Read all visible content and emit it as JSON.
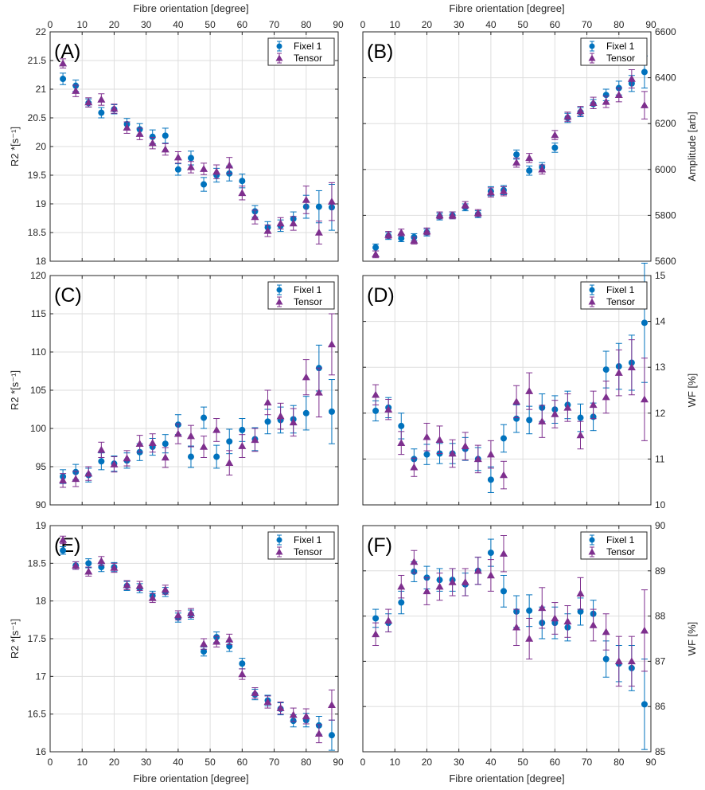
{
  "figure": {
    "top_xlabel": "Fibre orientation [degree]",
    "bottom_xlabel": "Fibre orientation [degree]"
  },
  "colors": {
    "fixel": "#0072bd",
    "tensor": "#7e2f8e",
    "grid": "#dedede",
    "axis": "#262626"
  },
  "chart_data": [
    {
      "id": "A",
      "type": "scatter",
      "panel_label": "(A)",
      "ylabel": "R2 *[s⁻¹]",
      "ylabel_side": "left",
      "xlim": [
        0,
        90
      ],
      "ylim": [
        18,
        22
      ],
      "xticks": [
        "0",
        "10",
        "20",
        "30",
        "40",
        "50",
        "60",
        "70",
        "80",
        "90"
      ],
      "yticks": [
        "18",
        "18.5",
        "19",
        "19.5",
        "20",
        "20.5",
        "21",
        "21.5",
        "22"
      ],
      "show_x_ticklabels": "top",
      "legend": [
        "Fixel 1",
        "Tensor"
      ],
      "series": [
        {
          "name": "Fixel 1",
          "marker": "circle",
          "x": [
            4,
            8,
            12,
            16,
            20,
            24,
            28,
            32,
            36,
            40,
            44,
            48,
            52,
            56,
            60,
            64,
            68,
            72,
            76,
            80,
            84,
            88
          ],
          "y": [
            21.18,
            21.06,
            20.76,
            20.59,
            20.65,
            20.39,
            20.3,
            20.17,
            20.19,
            19.6,
            19.8,
            19.34,
            19.5,
            19.53,
            19.4,
            18.87,
            18.59,
            18.62,
            18.74,
            18.95,
            18.95,
            18.94
          ],
          "err": [
            0.1,
            0.1,
            0.07,
            0.09,
            0.08,
            0.1,
            0.1,
            0.12,
            0.13,
            0.1,
            0.12,
            0.12,
            0.12,
            0.13,
            0.12,
            0.1,
            0.1,
            0.1,
            0.12,
            0.2,
            0.28,
            0.4
          ]
        },
        {
          "name": "Tensor",
          "marker": "triangle",
          "x": [
            4,
            8,
            12,
            16,
            20,
            24,
            28,
            32,
            36,
            40,
            44,
            48,
            52,
            56,
            60,
            64,
            68,
            72,
            76,
            80,
            84,
            88
          ],
          "y": [
            21.45,
            20.97,
            20.77,
            20.82,
            20.66,
            20.33,
            20.22,
            20.06,
            19.95,
            19.81,
            19.64,
            19.61,
            19.56,
            19.67,
            19.19,
            18.77,
            18.53,
            18.66,
            18.66,
            19.07,
            18.5,
            19.04
          ],
          "err": [
            0.08,
            0.1,
            0.08,
            0.1,
            0.08,
            0.1,
            0.1,
            0.1,
            0.1,
            0.1,
            0.1,
            0.1,
            0.12,
            0.14,
            0.12,
            0.12,
            0.1,
            0.1,
            0.12,
            0.24,
            0.2,
            0.33
          ]
        }
      ]
    },
    {
      "id": "B",
      "type": "scatter",
      "panel_label": "(B)",
      "ylabel": "Amplitude [arb]",
      "ylabel_side": "right",
      "xlim": [
        0,
        90
      ],
      "ylim": [
        5600,
        6600
      ],
      "xticks": [
        "0",
        "10",
        "20",
        "30",
        "40",
        "50",
        "60",
        "70",
        "80",
        "90"
      ],
      "yticks": [
        "5600",
        "5800",
        "6000",
        "6200",
        "6400",
        "6600"
      ],
      "show_x_ticklabels": "top",
      "legend": [
        "Fixel 1",
        "Tensor"
      ],
      "series": [
        {
          "name": "Fixel 1",
          "marker": "circle",
          "x": [
            4,
            8,
            12,
            16,
            20,
            24,
            28,
            32,
            36,
            40,
            44,
            48,
            52,
            56,
            60,
            64,
            68,
            72,
            76,
            80,
            84,
            88
          ],
          "y": [
            5660,
            5710,
            5700,
            5705,
            5725,
            5795,
            5800,
            5835,
            5805,
            5905,
            5910,
            6065,
            5995,
            6010,
            6095,
            6225,
            6250,
            6285,
            6325,
            6355,
            6375,
            6425
          ],
          "err": [
            15,
            15,
            15,
            15,
            15,
            15,
            15,
            15,
            15,
            20,
            20,
            20,
            20,
            20,
            20,
            20,
            20,
            20,
            25,
            30,
            35,
            70
          ]
        },
        {
          "name": "Tensor",
          "marker": "triangle",
          "x": [
            4,
            8,
            12,
            16,
            20,
            24,
            28,
            32,
            36,
            40,
            44,
            48,
            52,
            56,
            60,
            64,
            68,
            72,
            76,
            80,
            84,
            88
          ],
          "y": [
            5630,
            5715,
            5725,
            5690,
            5730,
            5800,
            5800,
            5845,
            5810,
            5900,
            5905,
            6030,
            6050,
            6000,
            6150,
            6230,
            6255,
            6290,
            6295,
            6325,
            6395,
            6280
          ],
          "err": [
            15,
            15,
            15,
            15,
            15,
            15,
            15,
            15,
            15,
            20,
            20,
            20,
            20,
            20,
            20,
            20,
            20,
            25,
            25,
            30,
            40,
            60
          ]
        }
      ]
    },
    {
      "id": "C",
      "type": "scatter",
      "panel_label": "(C)",
      "ylabel": "R2 *[s⁻¹]",
      "ylabel_side": "left",
      "xlim": [
        0,
        90
      ],
      "ylim": [
        90,
        120
      ],
      "xticks": [
        "0",
        "10",
        "20",
        "30",
        "40",
        "50",
        "60",
        "70",
        "80",
        "90"
      ],
      "yticks": [
        "90",
        "95",
        "100",
        "105",
        "110",
        "115",
        "120"
      ],
      "show_x_ticklabels": "none",
      "legend": [
        "Fixel 1",
        "Tensor"
      ],
      "series": [
        {
          "name": "Fixel 1",
          "marker": "circle",
          "x": [
            4,
            8,
            12,
            16,
            20,
            24,
            28,
            32,
            36,
            40,
            44,
            48,
            52,
            56,
            60,
            64,
            68,
            72,
            76,
            80,
            84,
            88
          ],
          "y": [
            93.7,
            94.3,
            93.9,
            95.7,
            95.4,
            95.8,
            96.9,
            97.6,
            98.0,
            100.5,
            96.3,
            101.4,
            96.3,
            98.3,
            99.8,
            98.6,
            100.9,
            101.1,
            101.2,
            102.0,
            107.9,
            102.2
          ],
          "err": [
            0.9,
            1.0,
            0.9,
            1.1,
            1.0,
            1.0,
            1.1,
            1.1,
            1.2,
            1.3,
            1.4,
            1.4,
            1.5,
            1.6,
            1.5,
            1.5,
            1.6,
            1.7,
            1.8,
            2.2,
            3.0,
            4.2
          ]
        },
        {
          "name": "Tensor",
          "marker": "triangle",
          "x": [
            4,
            8,
            12,
            16,
            20,
            24,
            28,
            32,
            36,
            40,
            44,
            48,
            52,
            56,
            60,
            64,
            68,
            72,
            76,
            80,
            84,
            88
          ],
          "y": [
            93.2,
            93.4,
            94.1,
            97.2,
            95.3,
            96.1,
            98.0,
            98.1,
            96.2,
            99.3,
            99.0,
            97.6,
            99.8,
            95.5,
            97.7,
            98.5,
            103.4,
            101.6,
            100.8,
            106.7,
            104.7,
            111.0
          ],
          "err": [
            0.9,
            1.0,
            0.9,
            1.0,
            1.0,
            1.0,
            1.1,
            1.2,
            1.3,
            1.3,
            1.4,
            1.4,
            1.5,
            1.6,
            1.5,
            1.5,
            1.6,
            1.7,
            1.8,
            2.3,
            3.2,
            4.0
          ]
        }
      ]
    },
    {
      "id": "D",
      "type": "scatter",
      "panel_label": "(D)",
      "ylabel": "WF [%]",
      "ylabel_side": "right",
      "xlim": [
        0,
        90
      ],
      "ylim": [
        10,
        15
      ],
      "xticks": [
        "0",
        "10",
        "20",
        "30",
        "40",
        "50",
        "60",
        "70",
        "80",
        "90"
      ],
      "yticks": [
        "10",
        "11",
        "12",
        "13",
        "14",
        "15"
      ],
      "show_x_ticklabels": "none",
      "legend": [
        "Fixel 1",
        "Tensor"
      ],
      "series": [
        {
          "name": "Fixel 1",
          "marker": "circle",
          "x": [
            4,
            8,
            12,
            16,
            20,
            24,
            28,
            32,
            36,
            40,
            44,
            48,
            52,
            56,
            60,
            64,
            68,
            72,
            76,
            80,
            84,
            88
          ],
          "y": [
            12.05,
            12.12,
            11.72,
            11.0,
            11.1,
            11.12,
            11.12,
            11.22,
            11.0,
            10.55,
            11.45,
            11.88,
            11.85,
            12.12,
            12.08,
            12.18,
            11.9,
            11.92,
            12.95,
            13.02,
            13.1,
            13.97
          ],
          "err": [
            0.22,
            0.22,
            0.28,
            0.22,
            0.22,
            0.22,
            0.22,
            0.25,
            0.25,
            0.28,
            0.3,
            0.3,
            0.3,
            0.3,
            0.3,
            0.3,
            0.3,
            0.3,
            0.4,
            0.5,
            0.6,
            1.3
          ]
        },
        {
          "name": "Tensor",
          "marker": "triangle",
          "x": [
            4,
            8,
            12,
            16,
            20,
            24,
            28,
            32,
            36,
            40,
            44,
            48,
            52,
            56,
            60,
            64,
            68,
            72,
            76,
            80,
            84,
            88
          ],
          "y": [
            12.4,
            12.08,
            11.35,
            10.82,
            11.48,
            11.42,
            11.12,
            11.28,
            11.0,
            11.1,
            10.65,
            12.25,
            12.48,
            11.82,
            11.98,
            12.12,
            11.52,
            12.18,
            12.35,
            12.88,
            13.0,
            12.3
          ],
          "err": [
            0.22,
            0.22,
            0.25,
            0.2,
            0.3,
            0.3,
            0.3,
            0.3,
            0.3,
            0.3,
            0.3,
            0.35,
            0.4,
            0.35,
            0.3,
            0.3,
            0.3,
            0.3,
            0.35,
            0.5,
            0.6,
            0.9
          ]
        }
      ]
    },
    {
      "id": "E",
      "type": "scatter",
      "panel_label": "(E)",
      "ylabel": "R2 *[s⁻¹]",
      "ylabel_side": "left",
      "xlim": [
        0,
        90
      ],
      "ylim": [
        16,
        19
      ],
      "xticks": [
        "0",
        "10",
        "20",
        "30",
        "40",
        "50",
        "60",
        "70",
        "80",
        "90"
      ],
      "yticks": [
        "16",
        "16.5",
        "17",
        "17.5",
        "18",
        "18.5",
        "19"
      ],
      "show_x_ticklabels": "bottom",
      "legend": [
        "Fixel 1",
        "Tensor"
      ],
      "series": [
        {
          "name": "Fixel 1",
          "marker": "circle",
          "x": [
            4,
            8,
            12,
            16,
            20,
            24,
            28,
            32,
            36,
            40,
            44,
            48,
            52,
            56,
            60,
            64,
            68,
            72,
            76,
            80,
            84,
            88
          ],
          "y": [
            18.67,
            18.47,
            18.5,
            18.45,
            18.45,
            18.2,
            18.17,
            18.07,
            18.12,
            17.78,
            17.82,
            17.33,
            17.52,
            17.4,
            17.17,
            16.76,
            16.68,
            16.57,
            16.41,
            16.42,
            16.35,
            16.22
          ],
          "err": [
            0.05,
            0.05,
            0.06,
            0.06,
            0.06,
            0.06,
            0.06,
            0.06,
            0.06,
            0.06,
            0.06,
            0.06,
            0.07,
            0.07,
            0.07,
            0.07,
            0.07,
            0.08,
            0.08,
            0.09,
            0.12,
            0.2
          ]
        },
        {
          "name": "Tensor",
          "marker": "triangle",
          "x": [
            4,
            8,
            12,
            16,
            20,
            24,
            28,
            32,
            36,
            40,
            44,
            48,
            52,
            56,
            60,
            64,
            68,
            72,
            76,
            80,
            84,
            88
          ],
          "y": [
            18.81,
            18.47,
            18.39,
            18.53,
            18.44,
            18.21,
            18.2,
            18.04,
            18.15,
            17.81,
            17.84,
            17.43,
            17.46,
            17.49,
            17.03,
            16.78,
            16.66,
            16.58,
            16.49,
            16.47,
            16.24,
            16.62
          ],
          "err": [
            0.05,
            0.05,
            0.06,
            0.06,
            0.06,
            0.06,
            0.06,
            0.06,
            0.06,
            0.06,
            0.06,
            0.07,
            0.07,
            0.07,
            0.07,
            0.07,
            0.08,
            0.08,
            0.09,
            0.1,
            0.12,
            0.2
          ]
        }
      ]
    },
    {
      "id": "F",
      "type": "scatter",
      "panel_label": "(F)",
      "ylabel": "WF [%]",
      "ylabel_side": "right",
      "xlim": [
        0,
        90
      ],
      "ylim": [
        85,
        90
      ],
      "xticks": [
        "0",
        "10",
        "20",
        "30",
        "40",
        "50",
        "60",
        "70",
        "80",
        "90"
      ],
      "yticks": [
        "85",
        "86",
        "87",
        "88",
        "89",
        "90"
      ],
      "show_x_ticklabels": "bottom",
      "legend": [
        "Fixel 1",
        "Tensor"
      ],
      "series": [
        {
          "name": "Fixel 1",
          "marker": "circle",
          "x": [
            4,
            8,
            12,
            16,
            20,
            24,
            28,
            32,
            36,
            40,
            44,
            48,
            52,
            56,
            60,
            64,
            68,
            72,
            76,
            80,
            84,
            88
          ],
          "y": [
            87.95,
            87.85,
            88.3,
            88.98,
            88.85,
            88.8,
            88.8,
            88.7,
            89.0,
            89.4,
            88.55,
            88.1,
            88.12,
            87.85,
            87.85,
            87.75,
            88.1,
            88.05,
            87.05,
            86.95,
            86.85,
            86.05
          ],
          "err": [
            0.2,
            0.2,
            0.25,
            0.22,
            0.25,
            0.25,
            0.25,
            0.25,
            0.3,
            0.3,
            0.35,
            0.35,
            0.35,
            0.35,
            0.35,
            0.3,
            0.3,
            0.3,
            0.4,
            0.4,
            0.5,
            1.0
          ]
        },
        {
          "name": "Tensor",
          "marker": "triangle",
          "x": [
            4,
            8,
            12,
            16,
            20,
            24,
            28,
            32,
            36,
            40,
            44,
            48,
            52,
            56,
            60,
            64,
            68,
            72,
            76,
            80,
            84,
            88
          ],
          "y": [
            87.6,
            87.9,
            88.65,
            89.2,
            88.55,
            88.65,
            88.75,
            88.75,
            89.0,
            88.9,
            89.38,
            87.75,
            87.5,
            88.18,
            87.95,
            87.88,
            88.5,
            87.8,
            87.65,
            87.0,
            87.0,
            87.68
          ],
          "err": [
            0.25,
            0.25,
            0.25,
            0.25,
            0.3,
            0.3,
            0.3,
            0.3,
            0.3,
            0.35,
            0.4,
            0.4,
            0.45,
            0.45,
            0.35,
            0.35,
            0.35,
            0.35,
            0.4,
            0.55,
            0.55,
            0.9
          ]
        }
      ]
    }
  ]
}
